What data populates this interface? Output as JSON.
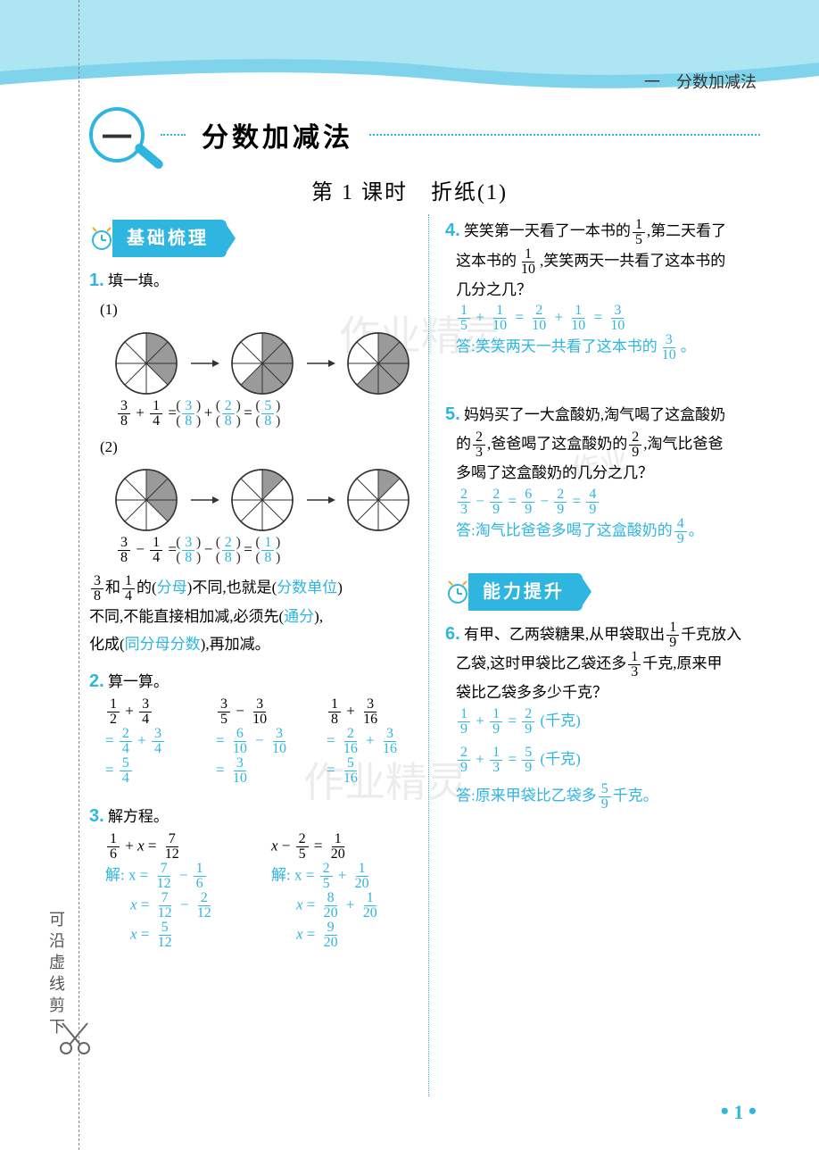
{
  "header": {
    "breadcrumb": "一　分数加减法"
  },
  "chapter": {
    "num": "一",
    "title": "分数加减法"
  },
  "lesson": {
    "title": "第 1 课时　折纸(1)"
  },
  "cut": {
    "text": "可沿虚线剪下"
  },
  "sections": {
    "basic": "基础梳理",
    "skill": "能力提升"
  },
  "q1": {
    "num": "1.",
    "title": "填一填。",
    "sub1": "(1)",
    "sub2": "(2)",
    "pie": {
      "stroke": "#333",
      "fill": "#9a9a9a",
      "r": 34,
      "slices": 8,
      "row1": [
        3,
        5,
        5
      ],
      "row2": [
        3,
        1,
        1
      ]
    },
    "eq1": {
      "a_n": "3",
      "a_d": "8",
      "op": "+",
      "b_n": "1",
      "b_d": "4",
      "p1_n": "3",
      "p1_d": "8",
      "p2_n": "2",
      "p2_d": "8",
      "p3_n": "5",
      "p3_d": "8"
    },
    "eq2": {
      "a_n": "3",
      "a_d": "8",
      "op": "−",
      "b_n": "1",
      "b_d": "4",
      "p1_n": "3",
      "p1_d": "8",
      "p2_n": "2",
      "p2_d": "8",
      "p3_n": "1",
      "p3_d": "8"
    },
    "text_a": "和",
    "text_b": "的(",
    "ans1": "分母",
    "text_c": ")不同,也就是(",
    "ans2": "分数单位",
    "text_d": ")",
    "line2a": "不同,不能直接相加减,必须先(",
    "ans3": "通分",
    "line2b": "),",
    "line3a": "化成(",
    "ans4": "同分母分数",
    "line3b": "),再加减。",
    "fA_n": "3",
    "fA_d": "8",
    "fB_n": "1",
    "fB_d": "4"
  },
  "q2": {
    "num": "2.",
    "title": "算一算。",
    "c1": {
      "p": [
        "1",
        "2",
        "+",
        "3",
        "4"
      ],
      "s1": [
        "2",
        "4",
        "+",
        "3",
        "4"
      ],
      "s2": [
        "5",
        "4"
      ]
    },
    "c2": {
      "p": [
        "3",
        "5",
        "−",
        "3",
        "10"
      ],
      "s1": [
        "6",
        "10",
        "−",
        "3",
        "10"
      ],
      "s2": [
        "3",
        "10"
      ]
    },
    "c3": {
      "p": [
        "1",
        "8",
        "+",
        "3",
        "16"
      ],
      "s1": [
        "2",
        "16",
        "+",
        "3",
        "16"
      ],
      "s2": [
        "5",
        "16"
      ]
    }
  },
  "q3": {
    "num": "3.",
    "title": "解方程。",
    "e1": {
      "lhs_n": "1",
      "lhs_d": "6",
      "rhs_n": "7",
      "rhs_d": "12",
      "op": "+",
      "pre": "解: x =",
      "s1": [
        "7",
        "12",
        "−",
        "1",
        "6"
      ],
      "s2": [
        "7",
        "12",
        "−",
        "2",
        "12"
      ],
      "s3": [
        "5",
        "12"
      ]
    },
    "e2": {
      "lhs_n": "2",
      "lhs_d": "5",
      "rhs_n": "1",
      "rhs_d": "20",
      "op": "−",
      "pre": "解: x =",
      "s1": [
        "2",
        "5",
        "+",
        "1",
        "20"
      ],
      "s2": [
        "8",
        "20",
        "+",
        "1",
        "20"
      ],
      "s3": [
        "9",
        "20"
      ]
    }
  },
  "q4": {
    "num": "4.",
    "l1a": "笑笑第一天看了一本书的",
    "f1_n": "1",
    "f1_d": "5",
    "l1b": ",第二天看了",
    "l2a": "这本书的",
    "f2_n": "1",
    "f2_d": "10",
    "l2b": ",笑笑两天一共看了这本书的",
    "l3": "几分之几？",
    "work": {
      "a": [
        "1",
        "5"
      ],
      "b": [
        "1",
        "10"
      ],
      "c": [
        "2",
        "10"
      ],
      "d": [
        "1",
        "10"
      ],
      "e": [
        "3",
        "10"
      ]
    },
    "ans_a": "答:笑笑两天一共看了这本书的",
    "ans_f_n": "3",
    "ans_f_d": "10",
    "ans_b": "。"
  },
  "q5": {
    "num": "5.",
    "l1a": "妈妈买了一大盒酸奶,淘气喝了这盒酸奶",
    "l2a": "的",
    "f1_n": "2",
    "f1_d": "3",
    "l2b": ",爸爸喝了这盒酸奶的",
    "f2_n": "2",
    "f2_d": "9",
    "l2c": ",淘气比爸爸",
    "l3": "多喝了这盒酸奶的几分之几？",
    "work": {
      "a": [
        "2",
        "3"
      ],
      "b": [
        "2",
        "9"
      ],
      "c": [
        "6",
        "9"
      ],
      "d": [
        "2",
        "9"
      ],
      "e": [
        "4",
        "9"
      ]
    },
    "ans_a": "答:淘气比爸爸多喝了这盒酸奶的",
    "ans_f_n": "4",
    "ans_f_d": "9",
    "ans_b": "。"
  },
  "q6": {
    "num": "6.",
    "l1a": "有甲、乙两袋糖果,从甲袋取出",
    "f1_n": "1",
    "f1_d": "9",
    "l1b": "千克放入",
    "l2a": "乙袋,这时甲袋比乙袋还多",
    "f2_n": "1",
    "f2_d": "3",
    "l2b": "千克,原来甲",
    "l3": "袋比乙袋多多少千克？",
    "w1": {
      "a": [
        "1",
        "9"
      ],
      "b": [
        "1",
        "9"
      ],
      "c": [
        "2",
        "9"
      ],
      "unit": "(千克)"
    },
    "w2": {
      "a": [
        "2",
        "9"
      ],
      "b": [
        "1",
        "3"
      ],
      "c": [
        "5",
        "9"
      ],
      "unit": "(千克)"
    },
    "ans_a": "答:原来甲袋比乙袋多",
    "ans_f_n": "5",
    "ans_f_d": "9",
    "ans_b": "千克。"
  },
  "page": {
    "num": "1"
  },
  "watermarks": {
    "w1": "作业精灵",
    "w2": "作业",
    "w3": "作业精灵"
  },
  "colors": {
    "accent": "#2eb5e0",
    "answer": "#2eb5e0",
    "text": "#333333"
  }
}
